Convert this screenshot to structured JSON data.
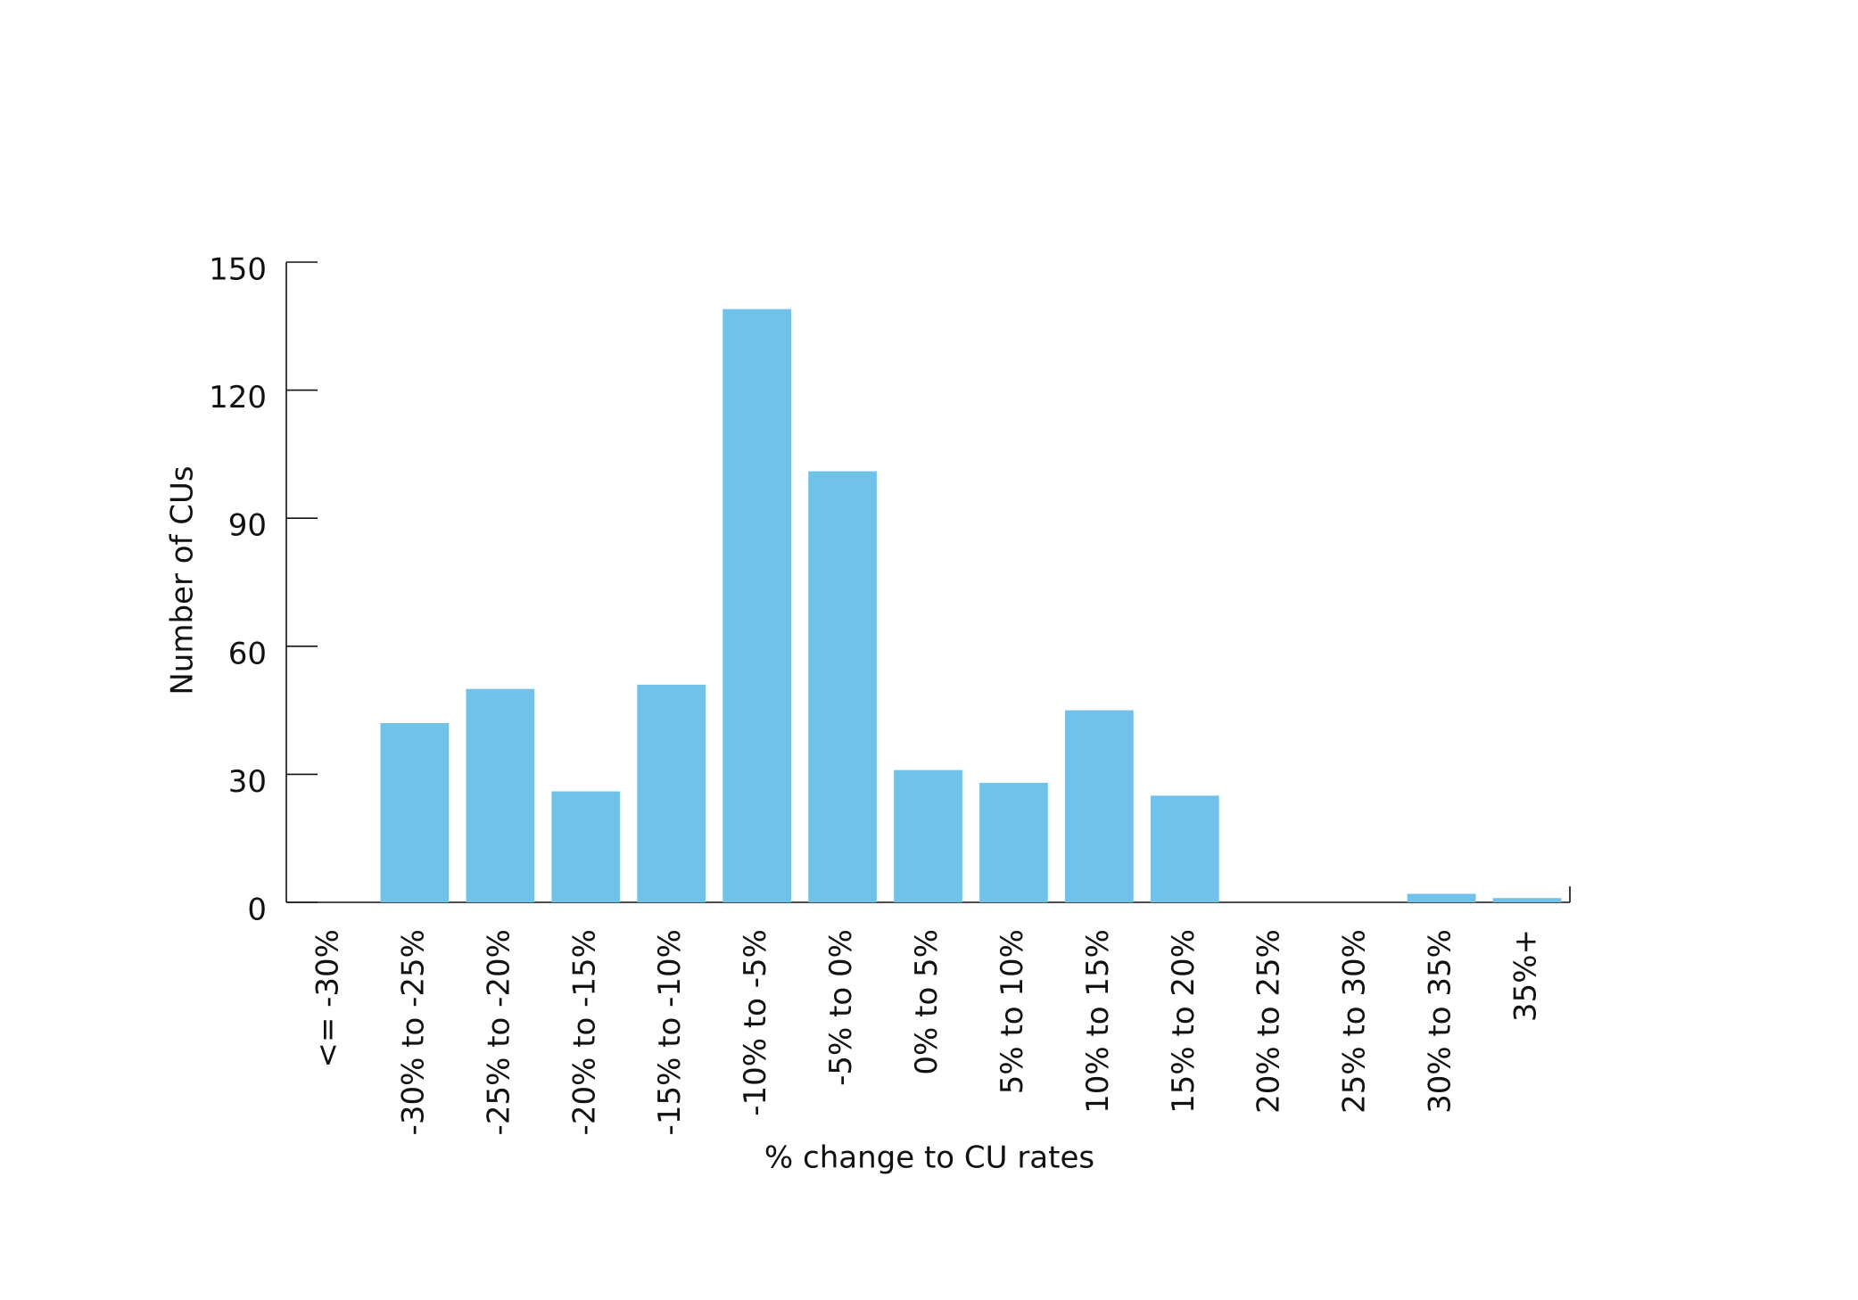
{
  "chart_data": {
    "type": "bar",
    "x_label": "% change to CU rates",
    "y_label": "Number of CUs",
    "categories": [
      "<= -30%",
      "-30% to -25%",
      "-25% to -20%",
      "-20% to -15%",
      "-15% to -10%",
      "-10% to -5%",
      "-5% to 0%",
      "0% to 5%",
      "5% to 10%",
      "10% to 15%",
      "15% to 20%",
      "20% to 25%",
      "25% to 30%",
      "30% to 35%",
      "35%+"
    ],
    "values": [
      0,
      42,
      50,
      26,
      51,
      139,
      101,
      31,
      28,
      45,
      25,
      0,
      0,
      2,
      1
    ],
    "color": "#71c2e9",
    "ylim": [
      0,
      150
    ],
    "yticks": [
      0,
      30,
      60,
      90,
      120,
      150
    ]
  }
}
